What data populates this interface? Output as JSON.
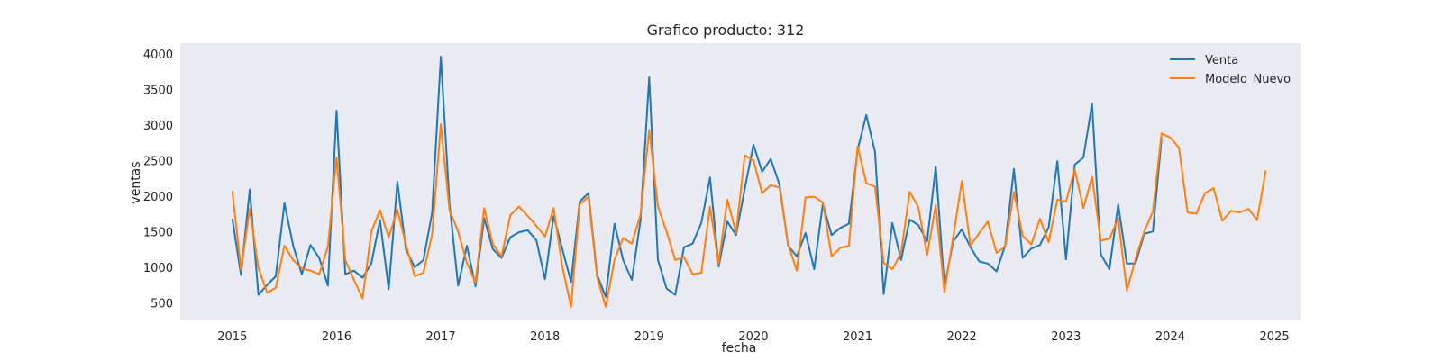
{
  "chart_data": {
    "type": "line",
    "title": "Grafico producto: 312",
    "xlabel": "fecha",
    "ylabel": "ventas",
    "xlim": [
      "2014-07",
      "2025-04"
    ],
    "ylim": [
      250,
      4150
    ],
    "x_ticks": [
      "2015",
      "2016",
      "2017",
      "2018",
      "2019",
      "2020",
      "2021",
      "2022",
      "2023",
      "2024",
      "2025"
    ],
    "y_ticks": [
      500,
      1000,
      1500,
      2000,
      2500,
      3000,
      3500,
      4000
    ],
    "grid": false,
    "legend": "top-right",
    "background": "#eaeaf2",
    "series": [
      {
        "name": "Venta",
        "color": "#1f77b4",
        "start": "2015-01",
        "values": [
          1680,
          890,
          2090,
          610,
          750,
          870,
          1900,
          1300,
          900,
          1310,
          1130,
          740,
          3200,
          900,
          950,
          850,
          1050,
          1660,
          690,
          2200,
          1240,
          1000,
          1100,
          1760,
          3960,
          1900,
          740,
          1300,
          730,
          1690,
          1250,
          1130,
          1420,
          1490,
          1520,
          1380,
          830,
          1720,
          1250,
          790,
          1920,
          2040,
          890,
          580,
          1610,
          1100,
          820,
          1660,
          3670,
          1100,
          700,
          610,
          1280,
          1330,
          1620,
          2260,
          1010,
          1640,
          1450,
          2100,
          2720,
          2340,
          2520,
          2160,
          1300,
          1150,
          1480,
          970,
          1890,
          1450,
          1550,
          1610,
          2650,
          3140,
          2620,
          620,
          1620,
          1100,
          1670,
          1590,
          1360,
          2410,
          720,
          1360,
          1530,
          1280,
          1080,
          1050,
          940,
          1310,
          2380,
          1130,
          1260,
          1310,
          1560,
          2490,
          1110,
          2440,
          2540,
          3300,
          1180,
          970,
          1880,
          1050,
          1050,
          1470,
          1500,
          2810
        ]
      },
      {
        "name": "Modelo_Nuevo",
        "color": "#ff7f0e",
        "start": "2015-01",
        "values": [
          2070,
          960,
          1820,
          990,
          640,
          710,
          1300,
          1100,
          980,
          950,
          900,
          1290,
          2540,
          1100,
          820,
          560,
          1500,
          1800,
          1420,
          1810,
          1310,
          870,
          920,
          1460,
          3010,
          1800,
          1500,
          1060,
          780,
          1830,
          1320,
          1150,
          1730,
          1850,
          1720,
          1580,
          1430,
          1830,
          1000,
          440,
          1880,
          1990,
          860,
          440,
          1100,
          1410,
          1330,
          1740,
          2930,
          1850,
          1500,
          1100,
          1140,
          900,
          920,
          1850,
          1050,
          1950,
          1480,
          2570,
          2500,
          2040,
          2150,
          2120,
          1320,
          950,
          1980,
          1990,
          1910,
          1150,
          1270,
          1300,
          2700,
          2180,
          2130,
          1060,
          970,
          1200,
          2060,
          1840,
          1170,
          1870,
          650,
          1420,
          2210,
          1300,
          1480,
          1640,
          1200,
          1290,
          2060,
          1440,
          1320,
          1680,
          1350,
          1950,
          1920,
          2370,
          1830,
          2270,
          1370,
          1400,
          1680,
          670,
          1110,
          1500,
          1780,
          2880,
          2820,
          2680,
          1770,
          1750,
          2040,
          2110,
          1650,
          1790,
          1770,
          1820,
          1660,
          2360
        ]
      }
    ]
  }
}
